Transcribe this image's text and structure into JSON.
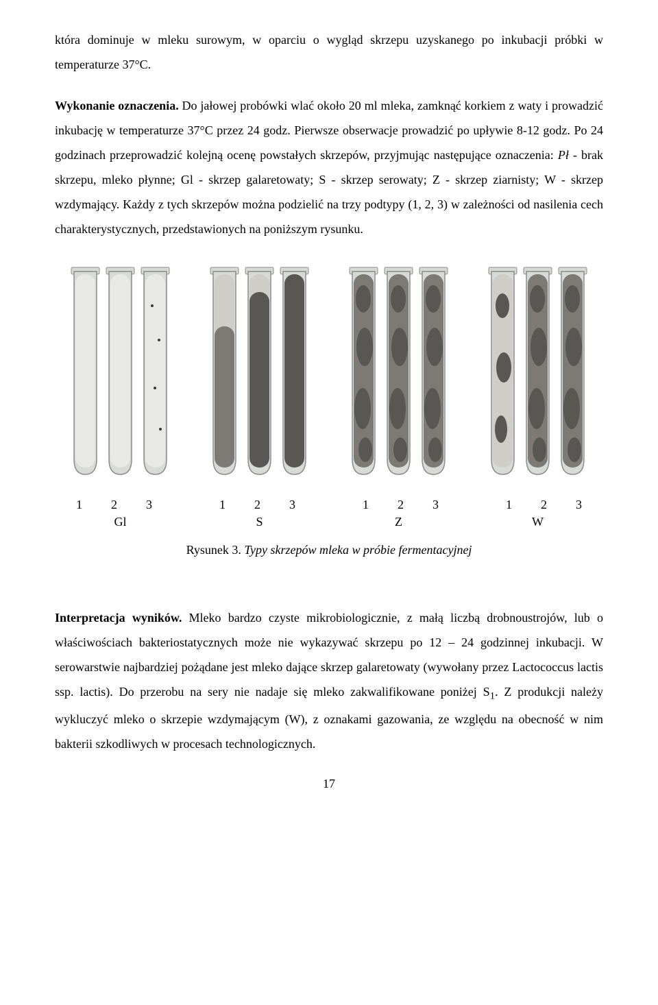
{
  "paragraphs": {
    "p1_a": "która dominuje w mleku surowym, w oparciu o wygląd skrzepu uzyskanego po inkubacji próbki w temperaturze 37°C.",
    "p2_lead": "Wykonanie oznaczenia.",
    "p2_body": " Do jałowej probówki wlać około 20 ml mleka, zamknąć korkiem z waty i prowadzić inkubację w temperaturze 37°C przez 24 godz. Pierwsze obserwacje prowadzić po upływie 8-12 godz. Po 24 godzinach przeprowadzić kolejną ocenę powstałych skrzepów, przyjmując następujące oznaczenia: ",
    "p2_i1": "Pł",
    "p2_c1": " - brak skrzepu, mleko płynne; Gl - skrzep galaretowaty; S - skrzep serowaty; Z - skrzep ziarnisty; W - skrzep wzdymający. Każdy z tych skrzepów można podzielić na trzy podtypy (1, 2, 3) w zależności od nasilenia cech charakterystycznych, przedstawionych na poniższym rysunku.",
    "figure_numbers": [
      "1",
      "2",
      "3",
      "1",
      "2",
      "3",
      "1",
      "2",
      "3",
      "1",
      "2",
      "3"
    ],
    "group_letters": [
      "Gl",
      "S",
      "Z",
      "W"
    ],
    "caption_lead": "Rysunek 3. ",
    "caption_body": "Typy skrzepów mleka w próbie fermentacyjnej",
    "p3_lead": "Interpretacja wyników.",
    "p3_body": " Mleko bardzo czyste mikrobiologicznie, z małą liczbą drobnoustrojów, lub o właściwościach bakteriostatycznych może nie wykazywać skrzepu po 12 – 24 godzinnej inkubacji. W serowarstwie najbardziej pożądane jest mleko dające skrzep galaretowaty (wywołany przez Lactococcus lactis ssp. lactis). Do przerobu na sery nie nadaje się mleko zakwalifikowane poniżej S",
    "p3_sub": "1",
    "p3_body2": ". Z produkcji należy wykluczyć mleko o skrzepie wzdymającym (W), z oznakami gazowania, ze względu na obecność w nim bakterii szkodliwych w procesach technologicznych.",
    "page_number": "17"
  },
  "figure": {
    "tube_colors": {
      "glass": "#d8dad8",
      "glass_stroke": "#8a8c8a",
      "milk_light": "#e8e9e6",
      "milk_mid": "#cfcdc8",
      "clot_dark": "#595754",
      "clot_mid": "#7d7a75",
      "spots": "#3b3a37"
    },
    "groups": [
      {
        "label": "Gl",
        "fills": [
          "light",
          "light",
          "light-spots"
        ]
      },
      {
        "label": "S",
        "fills": [
          "mid",
          "mid-dark",
          "dark"
        ]
      },
      {
        "label": "Z",
        "fills": [
          "dark-spots",
          "dark-spots",
          "dark-spots"
        ]
      },
      {
        "label": "W",
        "fills": [
          "mid-spots",
          "dark-spots",
          "dark-spots"
        ]
      }
    ]
  }
}
